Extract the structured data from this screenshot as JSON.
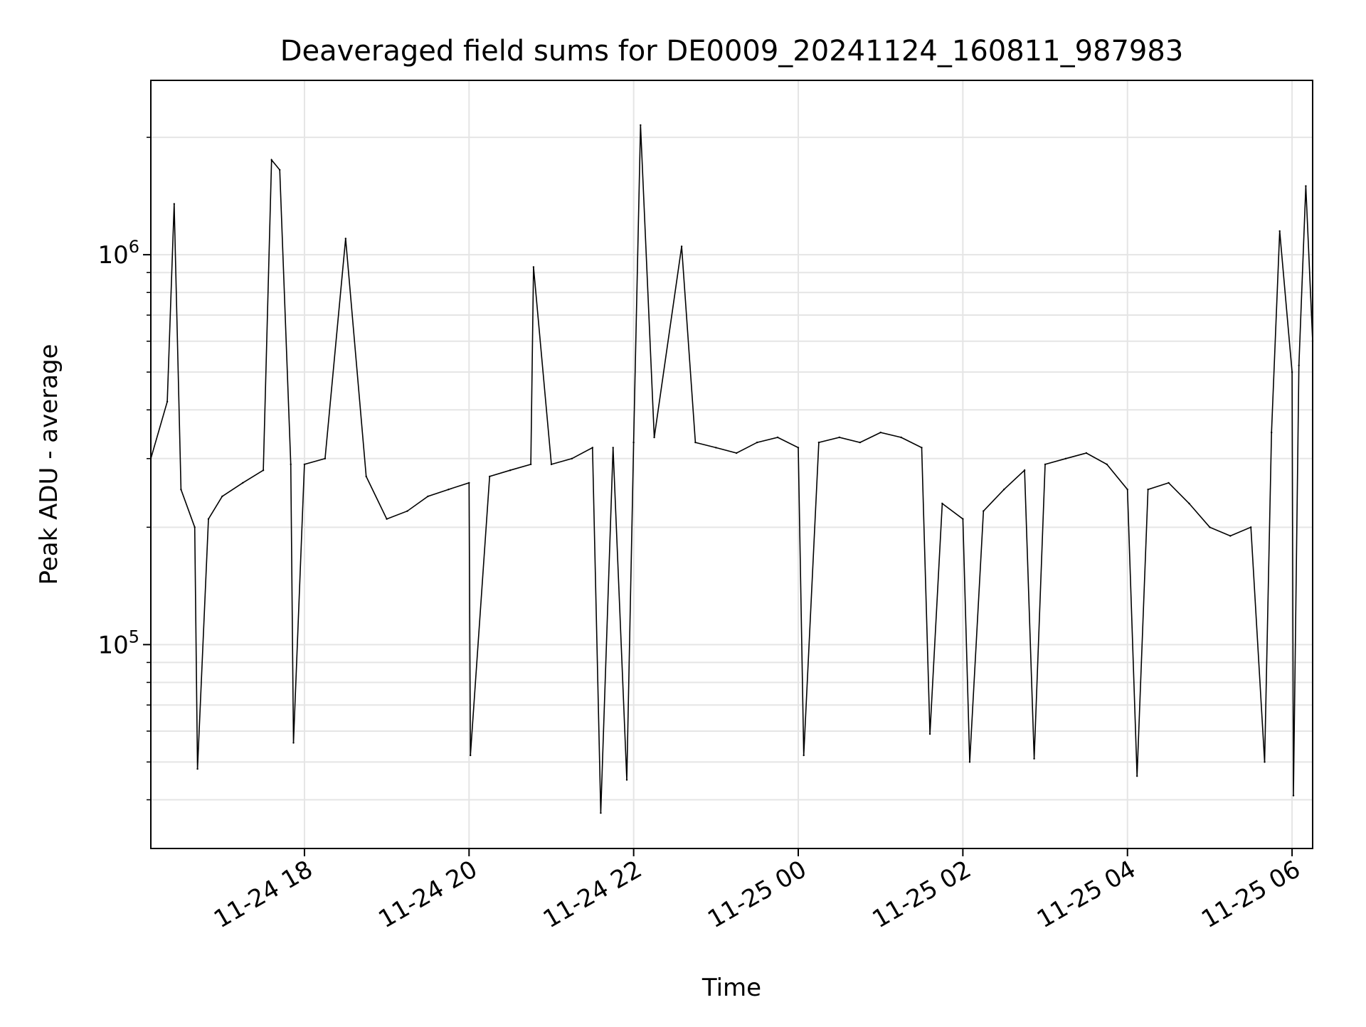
{
  "chart_data": {
    "type": "line",
    "title": "Deaveraged field sums for DE0009_20241124_160811_987983",
    "xlabel": "Time",
    "ylabel": "Peak ADU - average",
    "yscale": "log",
    "ylim": [
      30000,
      2800000
    ],
    "xlim": [
      "2024-11-24 16:08",
      "2024-11-25 06:15"
    ],
    "grid": true,
    "colors": {
      "line": "#000000",
      "grid": "#e5e5e5",
      "axes": "#000000"
    },
    "x_ticks": [
      {
        "t": "2024-11-24 18:00",
        "label": "11-24 18"
      },
      {
        "t": "2024-11-24 20:00",
        "label": "11-24 20"
      },
      {
        "t": "2024-11-24 22:00",
        "label": "11-24 22"
      },
      {
        "t": "2024-11-25 00:00",
        "label": "11-25 00"
      },
      {
        "t": "2024-11-25 02:00",
        "label": "11-25 02"
      },
      {
        "t": "2024-11-25 04:00",
        "label": "11-25 04"
      },
      {
        "t": "2024-11-25 06:00",
        "label": "11-25 06"
      }
    ],
    "y_major_ticks": [
      {
        "value": 100000,
        "base": "10",
        "exp": "5"
      },
      {
        "value": 1000000,
        "base": "10",
        "exp": "6"
      }
    ],
    "y_minor_ticks": [
      40000,
      50000,
      60000,
      70000,
      80000,
      90000,
      200000,
      300000,
      400000,
      500000,
      600000,
      700000,
      800000,
      900000,
      2000000
    ],
    "series": [
      {
        "points": [
          [
            "2024-11-24 16:08",
            300000
          ],
          [
            "2024-11-24 16:20",
            420000
          ],
          [
            "2024-11-24 16:25",
            1350000
          ],
          [
            "2024-11-24 16:30",
            250000
          ],
          [
            "2024-11-24 16:40",
            200000
          ],
          [
            "2024-11-24 16:42",
            48000
          ],
          [
            "2024-11-24 16:50",
            210000
          ],
          [
            "2024-11-24 17:00",
            240000
          ],
          [
            "2024-11-24 17:15",
            260000
          ],
          [
            "2024-11-24 17:30",
            280000
          ],
          [
            "2024-11-24 17:36",
            1750000
          ],
          [
            "2024-11-24 17:42",
            1650000
          ],
          [
            "2024-11-24 17:50",
            290000
          ],
          [
            "2024-11-24 17:52",
            56000
          ],
          [
            "2024-11-24 18:00",
            290000
          ],
          [
            "2024-11-24 18:15",
            300000
          ],
          [
            "2024-11-24 18:30",
            1100000
          ],
          [
            "2024-11-24 18:45",
            270000
          ],
          [
            "2024-11-24 19:00",
            210000
          ],
          [
            "2024-11-24 19:15",
            220000
          ],
          [
            "2024-11-24 19:30",
            240000
          ],
          [
            "2024-11-24 19:45",
            250000
          ],
          [
            "2024-11-24 20:00",
            260000
          ],
          [
            "2024-11-24 20:01",
            52000
          ],
          [
            "2024-11-24 20:15",
            270000
          ],
          [
            "2024-11-24 20:30",
            280000
          ],
          [
            "2024-11-24 20:45",
            290000
          ],
          [
            "2024-11-24 20:47",
            930000
          ],
          [
            "2024-11-24 21:00",
            290000
          ],
          [
            "2024-11-24 21:15",
            300000
          ],
          [
            "2024-11-24 21:30",
            320000
          ],
          [
            "2024-11-24 21:36",
            37000
          ],
          [
            "2024-11-24 21:45",
            320000
          ],
          [
            "2024-11-24 21:55",
            45000
          ],
          [
            "2024-11-24 22:00",
            330000
          ],
          [
            "2024-11-24 22:05",
            2150000
          ],
          [
            "2024-11-24 22:15",
            340000
          ],
          [
            "2024-11-24 22:35",
            1050000
          ],
          [
            "2024-11-24 22:45",
            330000
          ],
          [
            "2024-11-24 23:00",
            320000
          ],
          [
            "2024-11-24 23:15",
            310000
          ],
          [
            "2024-11-24 23:30",
            330000
          ],
          [
            "2024-11-24 23:45",
            340000
          ],
          [
            "2024-11-25 00:00",
            320000
          ],
          [
            "2024-11-25 00:04",
            52000
          ],
          [
            "2024-11-25 00:15",
            330000
          ],
          [
            "2024-11-25 00:30",
            340000
          ],
          [
            "2024-11-25 00:45",
            330000
          ],
          [
            "2024-11-25 01:00",
            350000
          ],
          [
            "2024-11-25 01:15",
            340000
          ],
          [
            "2024-11-25 01:30",
            320000
          ],
          [
            "2024-11-25 01:36",
            59000
          ],
          [
            "2024-11-25 01:45",
            230000
          ],
          [
            "2024-11-25 02:00",
            210000
          ],
          [
            "2024-11-25 02:05",
            50000
          ],
          [
            "2024-11-25 02:15",
            220000
          ],
          [
            "2024-11-25 02:30",
            250000
          ],
          [
            "2024-11-25 02:45",
            280000
          ],
          [
            "2024-11-25 02:52",
            51000
          ],
          [
            "2024-11-25 03:00",
            290000
          ],
          [
            "2024-11-25 03:15",
            300000
          ],
          [
            "2024-11-25 03:30",
            310000
          ],
          [
            "2024-11-25 03:45",
            290000
          ],
          [
            "2024-11-25 04:00",
            250000
          ],
          [
            "2024-11-25 04:07",
            46000
          ],
          [
            "2024-11-25 04:15",
            250000
          ],
          [
            "2024-11-25 04:30",
            260000
          ],
          [
            "2024-11-25 04:45",
            230000
          ],
          [
            "2024-11-25 05:00",
            200000
          ],
          [
            "2024-11-25 05:15",
            190000
          ],
          [
            "2024-11-25 05:30",
            200000
          ],
          [
            "2024-11-25 05:40",
            50000
          ],
          [
            "2024-11-25 05:45",
            350000
          ],
          [
            "2024-11-25 05:51",
            1150000
          ],
          [
            "2024-11-25 06:00",
            500000
          ],
          [
            "2024-11-25 06:01",
            41000
          ],
          [
            "2024-11-25 06:05",
            520000
          ],
          [
            "2024-11-25 06:10",
            1500000
          ],
          [
            "2024-11-25 06:15",
            600000
          ]
        ]
      }
    ]
  }
}
